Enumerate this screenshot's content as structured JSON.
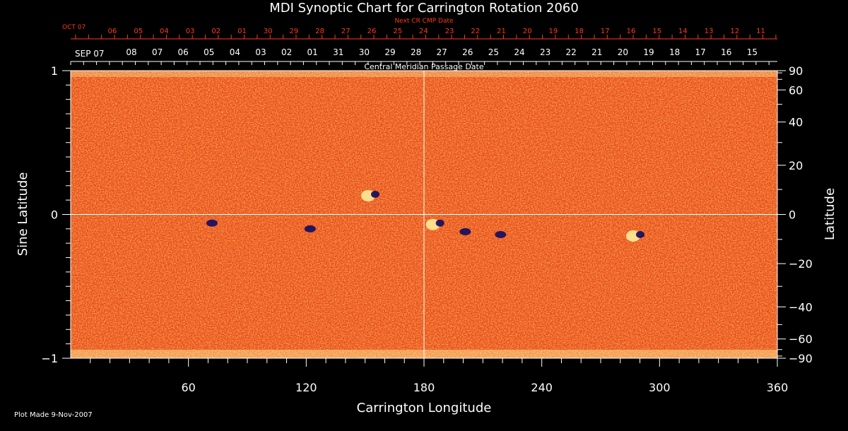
{
  "chart_data": {
    "type": "heatmap",
    "title": "MDI Synoptic Chart for Carrington Rotation 2060",
    "xlabel": "Carrington Longitude",
    "ylabel_left": "Sine Latitude",
    "ylabel_right": "Latitude",
    "xlim": [
      0,
      360
    ],
    "ylim_sine": [
      -1,
      1
    ],
    "x_ticks": [
      60,
      120,
      180,
      240,
      300,
      360
    ],
    "y_ticks_left": [
      {
        "value": 1,
        "label": "1"
      },
      {
        "value": 0,
        "label": "0"
      },
      {
        "value": -1,
        "label": "−1"
      }
    ],
    "y_ticks_right": [
      {
        "lat": 90,
        "label": "90"
      },
      {
        "lat": 60,
        "label": "60"
      },
      {
        "lat": 40,
        "label": "40"
      },
      {
        "lat": 20,
        "label": "20"
      },
      {
        "lat": 0,
        "label": "0"
      },
      {
        "lat": -20,
        "label": "−20"
      },
      {
        "lat": -40,
        "label": "−40"
      },
      {
        "lat": -60,
        "label": "−60"
      },
      {
        "lat": -90,
        "label": "−90"
      }
    ],
    "grid_lines": {
      "longitude": 180,
      "sine_latitude": 0
    },
    "next_cr_axis": {
      "label": "Next CR CMP Date",
      "start_label": "OCT 07",
      "days": [
        "06",
        "05",
        "04",
        "03",
        "02",
        "01",
        "30",
        "29",
        "28",
        "27",
        "26",
        "25",
        "24",
        "23",
        "22",
        "21",
        "20",
        "19",
        "18",
        "17",
        "16",
        "15",
        "14",
        "13",
        "12",
        "11"
      ]
    },
    "cmp_axis": {
      "label": "Central Meridian Passage Date",
      "start_label": "SEP 07",
      "days": [
        "08",
        "07",
        "06",
        "05",
        "04",
        "03",
        "02",
        "01",
        "31",
        "30",
        "29",
        "28",
        "27",
        "26",
        "25",
        "24",
        "23",
        "22",
        "21",
        "20",
        "19",
        "18",
        "17",
        "16",
        "15"
      ]
    },
    "active_regions": [
      {
        "lon": 153,
        "sinlat": 0.13,
        "polarity": "mixed"
      },
      {
        "lon": 72,
        "sinlat": -0.06,
        "polarity": "negative"
      },
      {
        "lon": 122,
        "sinlat": -0.1,
        "polarity": "negative"
      },
      {
        "lon": 186,
        "sinlat": -0.07,
        "polarity": "mixed"
      },
      {
        "lon": 201,
        "sinlat": -0.12,
        "polarity": "negative"
      },
      {
        "lon": 219,
        "sinlat": -0.14,
        "polarity": "negative"
      },
      {
        "lon": 288,
        "sinlat": -0.15,
        "polarity": "mixed"
      }
    ],
    "colors": {
      "background": "#000000",
      "field_base": "#e8481a",
      "positive": "#fff3a0",
      "negative": "#1a1060",
      "next_cr_axis": "#ff3a1a",
      "text": "#ffffff"
    }
  },
  "footer": {
    "plot_made": "Plot Made  9-Nov-2007"
  }
}
